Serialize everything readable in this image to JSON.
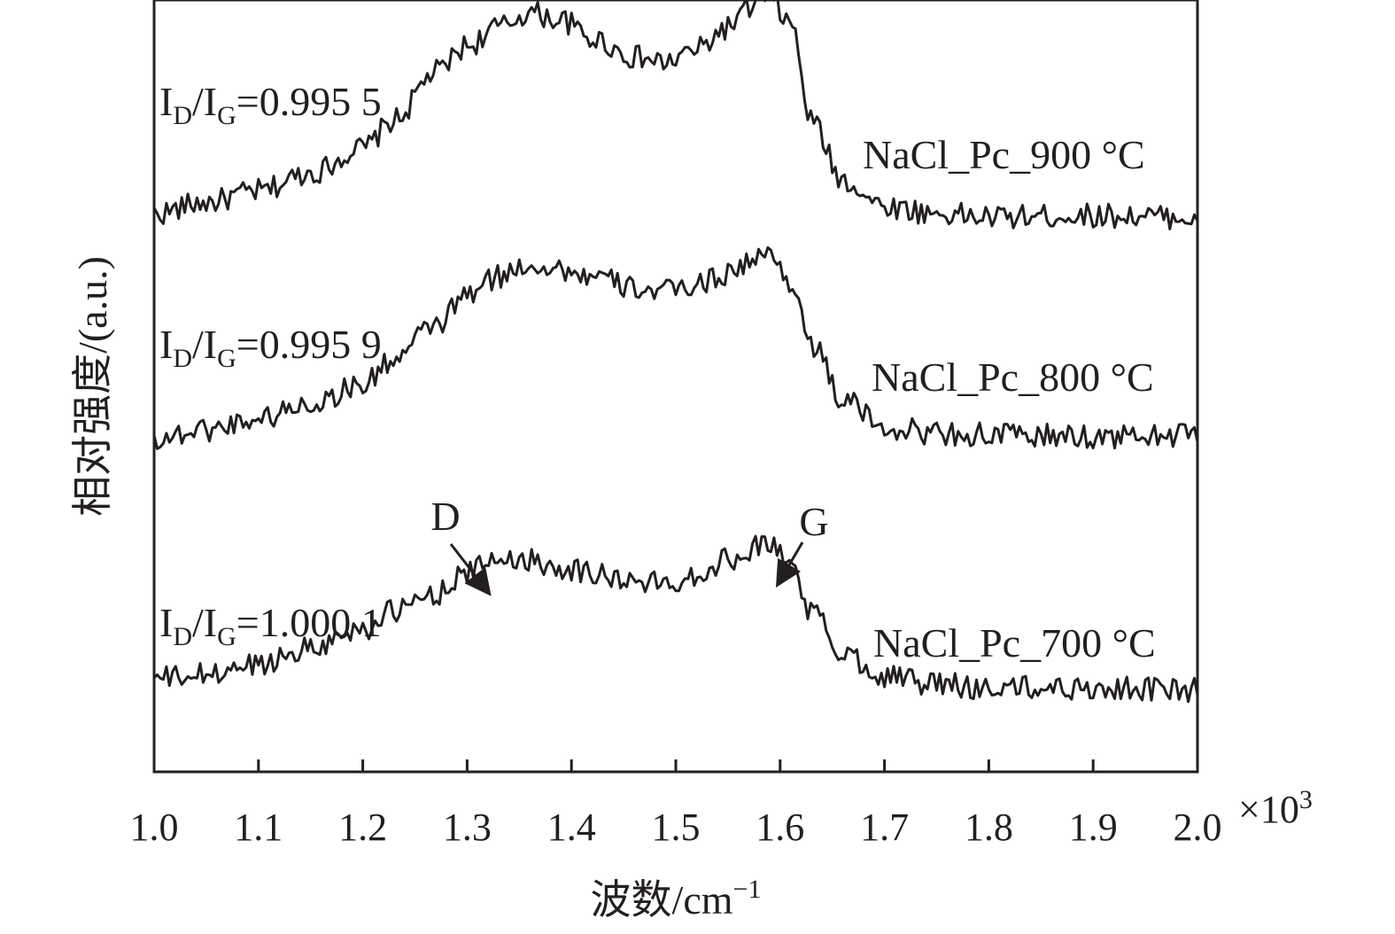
{
  "chart_data": {
    "type": "line",
    "xlabel": "波数/cm",
    "xlabel_sup": "−1",
    "ylabel": "相对强度/(a.u.)",
    "x_multiplier": "×10",
    "x_multiplier_sup": "3",
    "xlim": [
      1.0,
      2.0
    ],
    "xticks": [
      "1.0",
      "1.1",
      "1.2",
      "1.3",
      "1.4",
      "1.5",
      "1.6",
      "1.7",
      "1.8",
      "1.9",
      "2.0"
    ],
    "y_ticks_shown": false,
    "series": [
      {
        "name": "NaCl_Pc_900 °C",
        "ratio": {
          "a": "I",
          "as": "D",
          "sep": "/I",
          "bs": "G",
          "value": "=0.995 5"
        },
        "x": [
          1.0,
          1.05,
          1.1,
          1.15,
          1.2,
          1.23,
          1.27,
          1.3,
          1.33,
          1.36,
          1.39,
          1.42,
          1.46,
          1.49,
          1.52,
          1.55,
          1.57,
          1.59,
          1.61,
          1.63,
          1.66,
          1.7,
          1.75,
          1.8,
          1.9,
          2.0
        ],
        "y": [
          2.7,
          2.76,
          2.82,
          2.92,
          3.05,
          3.2,
          3.46,
          3.6,
          3.7,
          3.78,
          3.74,
          3.64,
          3.54,
          3.51,
          3.58,
          3.7,
          3.8,
          3.86,
          3.72,
          3.2,
          2.88,
          2.74,
          2.7,
          2.68,
          2.69,
          2.68
        ]
      },
      {
        "name": "NaCl_Pc_800 °C",
        "ratio": {
          "a": "I",
          "as": "D",
          "sep": "/I",
          "bs": "G",
          "value": "=0.995 9"
        },
        "x": [
          1.0,
          1.05,
          1.1,
          1.15,
          1.2,
          1.23,
          1.27,
          1.3,
          1.33,
          1.36,
          1.39,
          1.42,
          1.46,
          1.49,
          1.52,
          1.55,
          1.57,
          1.59,
          1.61,
          1.63,
          1.66,
          1.7,
          1.75,
          1.8,
          1.9,
          2.0
        ],
        "y": [
          1.49,
          1.54,
          1.6,
          1.68,
          1.78,
          1.92,
          2.1,
          2.26,
          2.36,
          2.43,
          2.4,
          2.36,
          2.3,
          2.28,
          2.32,
          2.38,
          2.44,
          2.48,
          2.34,
          2.0,
          1.7,
          1.55,
          1.52,
          1.51,
          1.5,
          1.51
        ]
      },
      {
        "name": "NaCl_Pc_700 °C",
        "ratio": {
          "a": "I",
          "as": "D",
          "sep": "/I",
          "bs": "G",
          "value": "=1.000 1"
        },
        "x": [
          1.0,
          1.05,
          1.1,
          1.15,
          1.2,
          1.23,
          1.27,
          1.3,
          1.33,
          1.36,
          1.39,
          1.42,
          1.46,
          1.49,
          1.52,
          1.55,
          1.57,
          1.59,
          1.61,
          1.63,
          1.66,
          1.7,
          1.75,
          1.8,
          1.9,
          2.0
        ],
        "y": [
          0.2,
          0.22,
          0.28,
          0.37,
          0.47,
          0.56,
          0.66,
          0.77,
          0.85,
          0.84,
          0.8,
          0.77,
          0.72,
          0.71,
          0.76,
          0.84,
          0.9,
          0.93,
          0.82,
          0.56,
          0.34,
          0.22,
          0.17,
          0.15,
          0.15,
          0.14
        ]
      }
    ],
    "annotations": [
      {
        "label": "D",
        "x": 1.325
      },
      {
        "label": "G",
        "x": 1.595
      }
    ]
  },
  "colors": {
    "line": "#231f20",
    "background": "#ffffff"
  }
}
